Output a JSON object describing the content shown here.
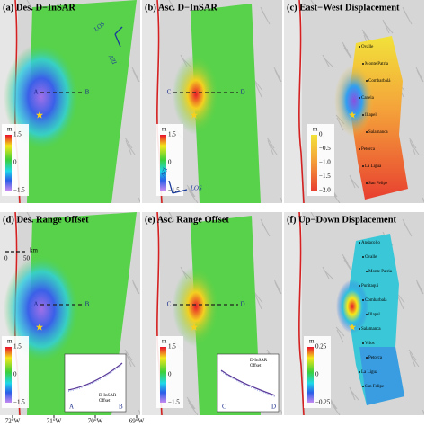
{
  "panels": [
    {
      "title": "(a) Des. D−InSAR",
      "colorbar": {
        "unit": "m",
        "ticks": [
          "1.5",
          "0",
          "−1.5"
        ]
      },
      "section": [
        "A",
        "B"
      ],
      "arrows": [
        "LOS",
        "AZI"
      ]
    },
    {
      "title": "(b) Asc. D−InSAR",
      "colorbar": {
        "unit": "m",
        "ticks": [
          "1.5",
          "0",
          "−1.5"
        ]
      },
      "section": [
        "C",
        "D"
      ],
      "arrows": [
        "AZI",
        "LOS"
      ]
    },
    {
      "title": "(c) East−West Displacement",
      "colorbar": {
        "unit": "m",
        "ticks": [
          "0",
          "−0.5",
          "−1.0",
          "−1.5",
          "−2.0"
        ]
      },
      "towns": [
        "Ovalle",
        "Monte Patria",
        "Combarbalá",
        "Canela",
        "Illapel",
        "Salamanca",
        "Petorca",
        "La Ligua",
        "San Felipe"
      ]
    },
    {
      "title": "(d) Des. Range Offset",
      "colorbar": {
        "unit": "m",
        "ticks": [
          "1.5",
          "0",
          "−1.5"
        ]
      },
      "section": [
        "A",
        "B"
      ],
      "scale": [
        "0",
        "50",
        "km"
      ],
      "inset": {
        "legend": [
          "D-InSAR",
          "Offset"
        ],
        "ends": [
          "A",
          "B"
        ]
      }
    },
    {
      "title": "(e) Asc. Range Offset",
      "colorbar": {
        "unit": "m",
        "ticks": [
          "1.5",
          "0",
          "−1.5"
        ]
      },
      "section": [
        "C",
        "D"
      ],
      "inset": {
        "legend": [
          "D-InSAR",
          "Offset"
        ],
        "ends": [
          "C",
          "D"
        ]
      }
    },
    {
      "title": "(f) Up−Down Displacement",
      "colorbar": {
        "unit": "m",
        "ticks": [
          "0.25",
          "0",
          "−0.25"
        ]
      },
      "towns": [
        "Andacollo",
        "Ovalle",
        "Monte Patria",
        "Punitaqui",
        "Combarbalá",
        "Illapel",
        "Salamanca",
        "Vilos",
        "Petorca",
        "La Ligua",
        "San Felipe"
      ]
    }
  ],
  "longitudes": [
    "72°W",
    "71°W",
    "70°W",
    "69°W"
  ]
}
